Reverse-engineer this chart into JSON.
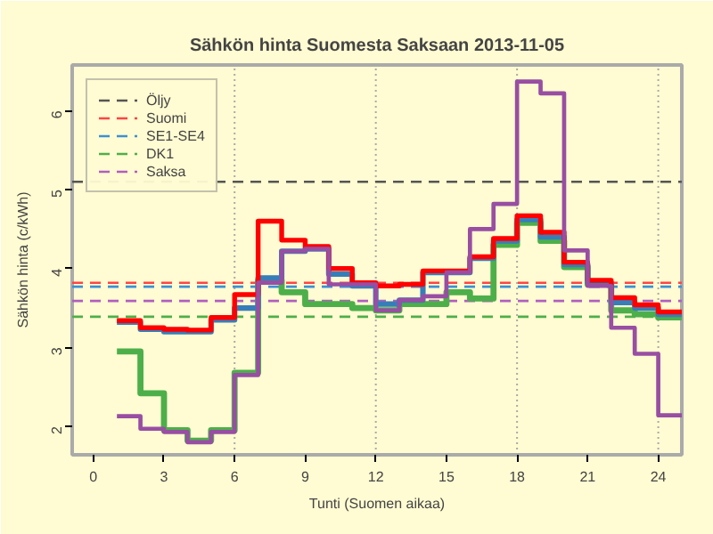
{
  "chart_data": {
    "type": "step",
    "title": "Sähkön hinta Suomesta Saksaan 2013-11-05",
    "xlabel": "Tunti (Suomen aikaa)",
    "ylabel": "Sähkön hinta (c/kWh)",
    "x": [
      1,
      2,
      3,
      4,
      5,
      6,
      7,
      8,
      9,
      10,
      11,
      12,
      13,
      14,
      15,
      16,
      17,
      18,
      19,
      20,
      21,
      22,
      23,
      24,
      25
    ],
    "xlim": [
      -0.9,
      25
    ],
    "ylim": [
      1.64,
      6.58
    ],
    "xticks": [
      0,
      3,
      6,
      9,
      12,
      15,
      18,
      21,
      24
    ],
    "yticks": [
      2,
      3,
      4,
      5,
      6
    ],
    "grid": false,
    "legend": "top left",
    "line_style": "solid",
    "series": [
      {
        "color": "#4daf4a",
        "values": [
          2.95,
          2.42,
          1.95,
          1.82,
          1.95,
          2.68,
          3.85,
          3.7,
          3.55,
          3.55,
          3.5,
          3.47,
          3.55,
          3.55,
          3.7,
          3.62,
          4.3,
          4.58,
          4.35,
          4.02,
          3.8,
          3.47,
          3.42,
          3.38,
          3.38
        ]
      },
      {
        "color": "#377eb8",
        "values": [
          3.32,
          3.23,
          3.2,
          3.2,
          3.35,
          3.5,
          3.88,
          4.22,
          4.25,
          3.93,
          3.78,
          3.55,
          3.6,
          3.95,
          3.95,
          4.13,
          4.35,
          4.62,
          4.4,
          4.05,
          3.82,
          3.57,
          3.5,
          3.42,
          3.42
        ]
      },
      {
        "color": "#ff0000",
        "values": [
          3.34,
          3.25,
          3.23,
          3.22,
          3.38,
          3.67,
          4.6,
          4.36,
          4.28,
          4.0,
          3.82,
          3.78,
          3.8,
          3.97,
          3.97,
          4.15,
          4.38,
          4.67,
          4.46,
          4.08,
          3.85,
          3.63,
          3.54,
          3.45,
          3.45
        ]
      },
      {
        "color": "#984ea3",
        "values": [
          2.13,
          1.97,
          1.93,
          1.8,
          1.93,
          2.65,
          3.82,
          4.22,
          4.25,
          3.8,
          3.8,
          3.47,
          3.6,
          3.65,
          3.95,
          4.5,
          4.82,
          6.37,
          6.22,
          4.23,
          3.78,
          3.25,
          2.92,
          2.14,
          2.14
        ]
      }
    ],
    "ref_lines": [
      {
        "axis": "x",
        "value": 6,
        "color": "#aaaaaa",
        "line_style": "dotted"
      },
      {
        "axis": "x",
        "value": 12,
        "color": "#aaaaaa",
        "line_style": "dotted"
      },
      {
        "axis": "x",
        "value": 18,
        "color": "#aaaaaa",
        "line_style": "dotted"
      },
      {
        "axis": "x",
        "value": 24,
        "color": "#aaaaaa",
        "line_style": "dotted"
      },
      {
        "axis": "y",
        "value": 5.1,
        "label": "Öljy",
        "color": "#555555",
        "line_style": "dashed"
      },
      {
        "axis": "y",
        "value": 3.82,
        "label": "Suomi",
        "color": "#ff4444",
        "line_style": "dashed"
      },
      {
        "axis": "y",
        "value": 3.77,
        "label": "SE1-SE4",
        "color": "#3d8fd6",
        "line_style": "dashed"
      },
      {
        "axis": "y",
        "value": 3.39,
        "label": "DK1",
        "color": "#4daf4a",
        "line_style": "dashed"
      },
      {
        "axis": "y",
        "value": 3.59,
        "label": "Saksa",
        "color": "#b05fc0",
        "line_style": "dashed"
      }
    ]
  }
}
